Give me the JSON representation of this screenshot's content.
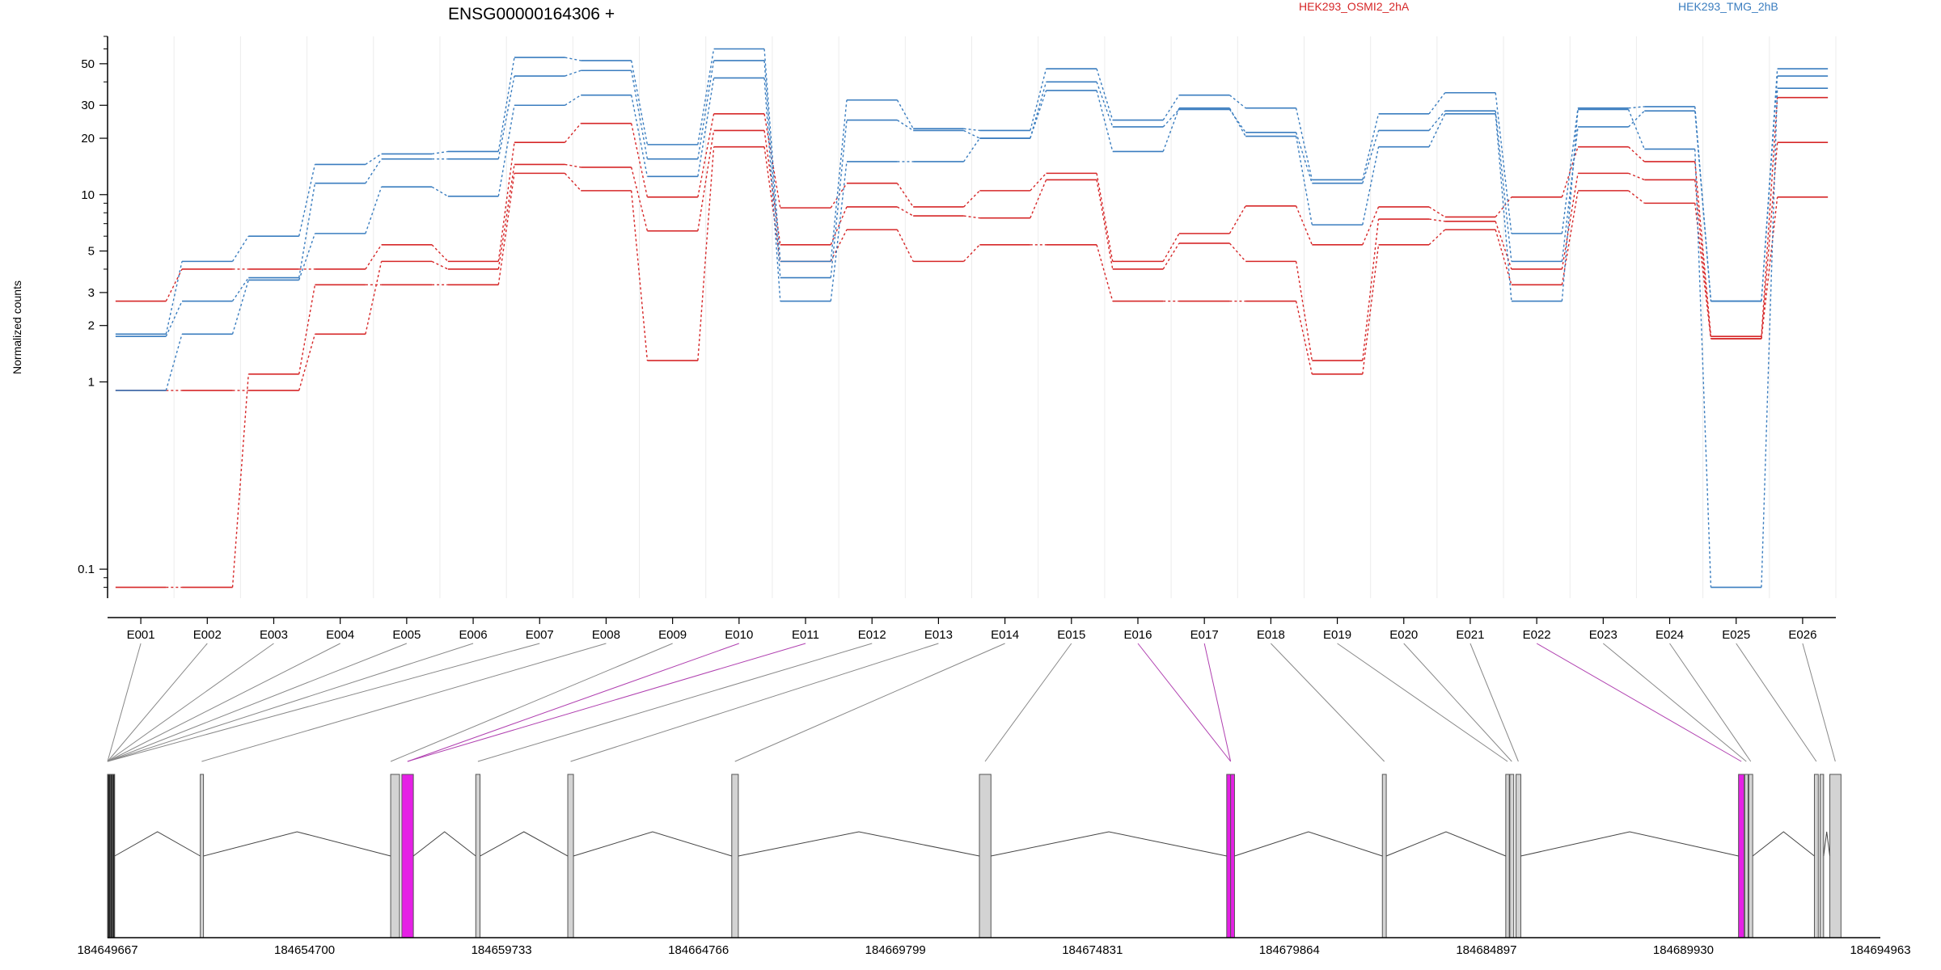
{
  "header": {
    "gene_title": "ENSG00000164306 +",
    "legend": [
      {
        "label": "HEK293_OSMI2_2hA",
        "color": "#d62728"
      },
      {
        "label": "HEK293_TMG_2hB",
        "color": "#3a7dbf"
      }
    ]
  },
  "chart_data": {
    "type": "line",
    "title": "ENSG00000164306 +",
    "ylabel": "Normalized counts",
    "yscale": "log",
    "ylim": [
      0.07,
      70
    ],
    "ytick_values": [
      0.1,
      1,
      2,
      3,
      5,
      10,
      20,
      30,
      50
    ],
    "ytick_labels": [
      "0.1",
      "1",
      "2",
      "3",
      "5",
      "10",
      "20",
      "30",
      "50"
    ],
    "grid": "vertical-minor",
    "legend_position": "top",
    "categories": [
      "E001",
      "E002",
      "E003",
      "E004",
      "E005",
      "E006",
      "E007",
      "E008",
      "E009",
      "E010",
      "E011",
      "E012",
      "E013",
      "E014",
      "E015",
      "E016",
      "E017",
      "E018",
      "E019",
      "E020",
      "E021",
      "E022",
      "E023",
      "E024",
      "E025",
      "E026"
    ],
    "series": [
      {
        "name": "HEK293_OSMI2_2hA",
        "color": "#d62728",
        "values": [
          2.7,
          4.0,
          4.0,
          4.0,
          5.4,
          4.4,
          19.0,
          24.0,
          9.7,
          27.0,
          8.5,
          11.5,
          8.6,
          10.5,
          13.0,
          4.4,
          6.2,
          8.7,
          5.4,
          8.6,
          7.6,
          9.7,
          18.0,
          15.0,
          1.75,
          33.0
        ]
      },
      {
        "name": "HEK293_OSMI2_2hA",
        "color": "#d62728",
        "values": [
          0.9,
          0.9,
          0.9,
          1.8,
          4.4,
          4.0,
          14.5,
          14.0,
          6.4,
          22.0,
          5.4,
          8.6,
          7.7,
          7.5,
          12.0,
          4.0,
          5.5,
          4.4,
          1.3,
          7.4,
          7.2,
          4.0,
          13.0,
          12.0,
          1.7,
          19.0
        ]
      },
      {
        "name": "HEK293_OSMI2_2hA",
        "color": "#d62728",
        "values": [
          0.08,
          0.08,
          1.1,
          3.3,
          3.3,
          3.3,
          13.0,
          10.5,
          1.3,
          18.0,
          4.4,
          6.5,
          4.4,
          5.4,
          5.4,
          2.7,
          2.7,
          2.7,
          1.1,
          5.4,
          6.5,
          3.3,
          10.5,
          9.0,
          1.7,
          9.7
        ]
      },
      {
        "name": "HEK293_TMG_2hB",
        "color": "#3a7dbf",
        "values": [
          1.8,
          4.4,
          6.0,
          14.5,
          16.5,
          17.0,
          54.0,
          52.0,
          18.5,
          60.0,
          4.4,
          32.0,
          22.5,
          22.0,
          47.0,
          25.0,
          34.0,
          29.0,
          12.0,
          27.0,
          35.0,
          6.2,
          29.0,
          29.5,
          2.7,
          47.0
        ]
      },
      {
        "name": "HEK293_TMG_2hB",
        "color": "#3a7dbf",
        "values": [
          1.75,
          2.7,
          3.6,
          11.5,
          15.5,
          15.5,
          43.0,
          46.0,
          15.5,
          52.0,
          3.6,
          25.0,
          22.0,
          20.0,
          40.0,
          23.0,
          28.5,
          21.5,
          11.5,
          22.0,
          28.0,
          4.4,
          23.0,
          28.0,
          2.7,
          43.0
        ]
      },
      {
        "name": "HEK293_TMG_2hB",
        "color": "#3a7dbf",
        "values": [
          0.9,
          1.8,
          3.5,
          6.2,
          11.0,
          9.8,
          30.0,
          34.0,
          12.5,
          42.0,
          2.7,
          15.0,
          15.0,
          20.0,
          36.0,
          17.0,
          29.0,
          20.5,
          6.9,
          18.0,
          27.0,
          2.7,
          28.5,
          17.5,
          0.08,
          37.0
        ]
      }
    ],
    "exon_connectors": [
      {
        "label": "E001",
        "highlight": false
      },
      {
        "label": "E002",
        "highlight": false
      },
      {
        "label": "E003",
        "highlight": false
      },
      {
        "label": "E004",
        "highlight": false
      },
      {
        "label": "E005",
        "highlight": false
      },
      {
        "label": "E006",
        "highlight": false
      },
      {
        "label": "E007",
        "highlight": false
      },
      {
        "label": "E008",
        "highlight": false
      },
      {
        "label": "E009",
        "highlight": false
      },
      {
        "label": "E010",
        "highlight": true
      },
      {
        "label": "E011",
        "highlight": true
      },
      {
        "label": "E012",
        "highlight": false
      },
      {
        "label": "E013",
        "highlight": false
      },
      {
        "label": "E014",
        "highlight": false
      },
      {
        "label": "E015",
        "highlight": false
      },
      {
        "label": "E016",
        "highlight": true
      },
      {
        "label": "E017",
        "highlight": true
      },
      {
        "label": "E018",
        "highlight": false
      },
      {
        "label": "E019",
        "highlight": false
      },
      {
        "label": "E020",
        "highlight": false
      },
      {
        "label": "E021",
        "highlight": false
      },
      {
        "label": "E022",
        "highlight": true
      },
      {
        "label": "E023",
        "highlight": false
      },
      {
        "label": "E024",
        "highlight": false
      },
      {
        "label": "E025",
        "highlight": false
      },
      {
        "label": "E026",
        "highlight": false
      }
    ],
    "gene_model": {
      "genomic_range": [
        184649667,
        184694963
      ],
      "position_ticks": [
        "184649667",
        "184654700",
        "184659733",
        "184664766",
        "184669799",
        "184674831",
        "184679864",
        "184684897",
        "184689930",
        "184694963"
      ],
      "highlight_color": "#e520e5",
      "exon_color": "#d3d3d3"
    }
  }
}
